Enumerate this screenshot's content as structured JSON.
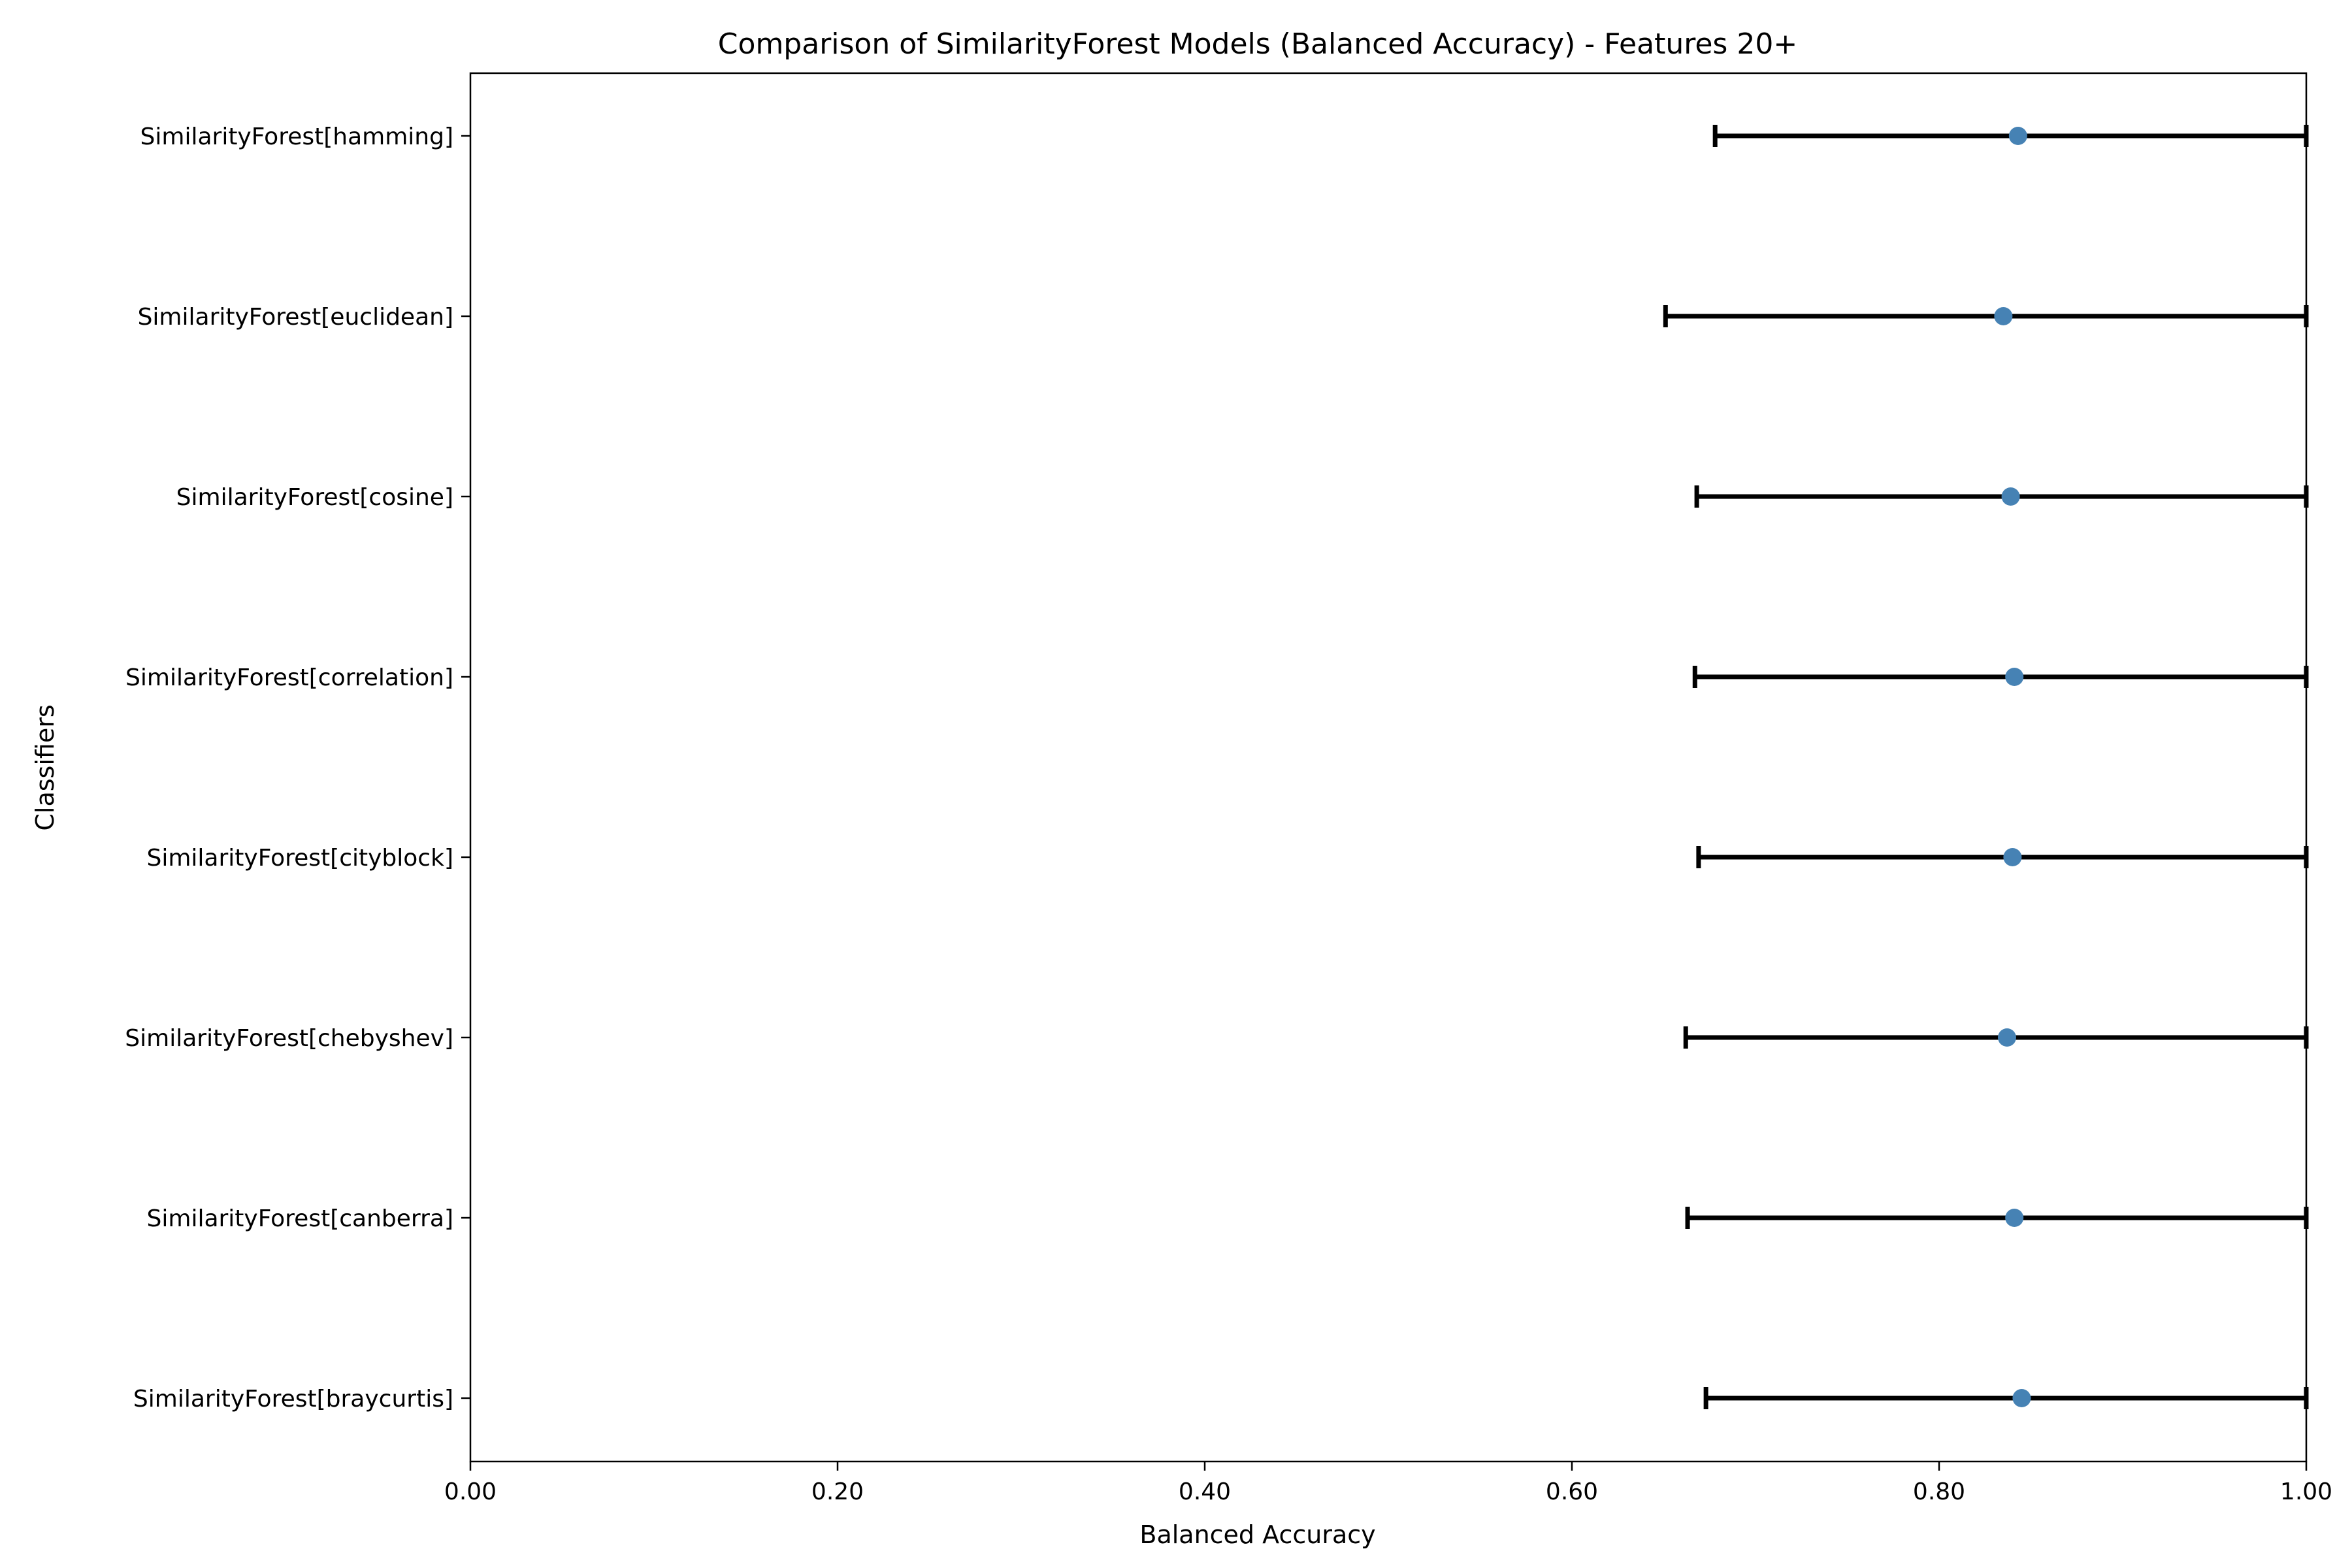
{
  "chart_data": {
    "type": "scatter",
    "title": "Comparison of SimilarityForest Models (Balanced Accuracy) - Features 20+",
    "xlabel": "Balanced Accuracy",
    "ylabel": "Classifiers",
    "xlim": [
      0,
      1
    ],
    "xticks": [
      "0.00",
      "0.20",
      "0.40",
      "0.60",
      "0.80",
      "1.00"
    ],
    "grid": false,
    "marker_color": "#4682b4",
    "errorbar_color": "#000000",
    "points": [
      {
        "label": "SimilarityForest[hamming]",
        "value": 0.843,
        "low": 0.678,
        "high": 1.0
      },
      {
        "label": "SimilarityForest[euclidean]",
        "value": 0.835,
        "low": 0.651,
        "high": 1.0
      },
      {
        "label": "SimilarityForest[cosine]",
        "value": 0.839,
        "low": 0.668,
        "high": 1.0
      },
      {
        "label": "SimilarityForest[correlation]",
        "value": 0.841,
        "low": 0.667,
        "high": 1.0
      },
      {
        "label": "SimilarityForest[cityblock]",
        "value": 0.84,
        "low": 0.669,
        "high": 1.0
      },
      {
        "label": "SimilarityForest[chebyshev]",
        "value": 0.837,
        "low": 0.662,
        "high": 1.0
      },
      {
        "label": "SimilarityForest[canberra]",
        "value": 0.841,
        "low": 0.663,
        "high": 1.0
      },
      {
        "label": "SimilarityForest[braycurtis]",
        "value": 0.845,
        "low": 0.673,
        "high": 1.0
      }
    ]
  }
}
